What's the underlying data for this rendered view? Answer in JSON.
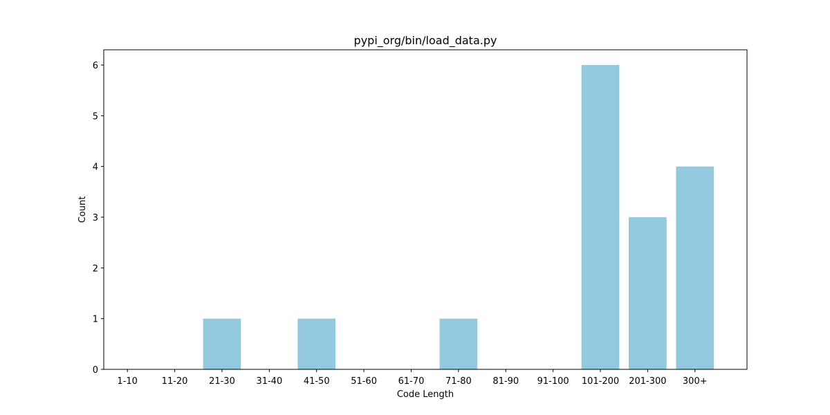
{
  "chart_data": {
    "type": "bar",
    "title": "pypi_org/bin/load_data.py",
    "xlabel": "Code Length",
    "ylabel": "Count",
    "categories": [
      "1-10",
      "11-20",
      "21-30",
      "31-40",
      "41-50",
      "51-60",
      "61-70",
      "71-80",
      "81-90",
      "91-100",
      "101-200",
      "201-300",
      "300+"
    ],
    "values": [
      0,
      0,
      1,
      0,
      1,
      0,
      0,
      1,
      0,
      0,
      6,
      3,
      4
    ],
    "ylim": [
      0,
      6.3
    ],
    "yticks": [
      0,
      1,
      2,
      3,
      4,
      5,
      6
    ],
    "bar_color": "#92c9de",
    "grid": false,
    "legend": "none"
  }
}
